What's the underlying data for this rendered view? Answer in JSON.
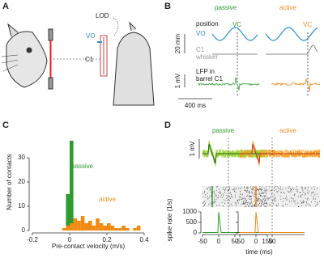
{
  "panel_a": {
    "label": "A",
    "LOD": "LOD",
    "VO": "VO",
    "C1": "C1"
  },
  "panel_b": {
    "label": "B",
    "passive": "passive",
    "active": "active",
    "position": "position",
    "VO": "VO",
    "VC": "VC",
    "C1": "C1",
    "whisker": "whisker",
    "scale_pos": "20 mm",
    "scale_lfp": "1 mV",
    "lfp1": "LFP in",
    "lfp2": "barrel C1",
    "scale_time": "400 ms"
  },
  "chart_data": {
    "type": "histogram",
    "panel_label": "C",
    "xlabel": "Pre-contact velocity (m/s)",
    "ylabel": "Number of contacts",
    "bins": [
      -0.04,
      -0.02,
      0,
      0.02,
      0.04,
      0.06,
      0.08,
      0.1,
      0.12,
      0.14,
      0.16,
      0.18,
      0.2,
      0.22,
      0.24,
      0.26,
      0.28,
      0.3,
      0.32,
      0.34,
      0.36,
      0.38,
      0.4
    ],
    "series": [
      {
        "name": "passive",
        "color": "#2e9c2e",
        "values": [
          0,
          15,
          37,
          0,
          0,
          0,
          0,
          0,
          0,
          0,
          0,
          0,
          0,
          0,
          0,
          0,
          0,
          0,
          0,
          0,
          0,
          0
        ]
      },
      {
        "name": "active",
        "color": "#f08a12",
        "values": [
          1,
          2,
          3,
          5,
          4,
          6,
          3,
          4,
          2,
          5,
          3,
          2,
          3,
          2,
          1,
          1,
          2,
          1,
          0,
          1,
          2,
          0
        ]
      }
    ],
    "xlim": [
      -0.2,
      0.4
    ],
    "ylim": [
      0,
      40
    ],
    "xticks": [
      -0.2,
      0,
      0.2,
      0.4
    ],
    "yticks": [
      0,
      10,
      20,
      30
    ]
  },
  "panel_d": {
    "label": "D",
    "passive": "passive",
    "active": "active",
    "scale_lfp": "1 mV",
    "ylabel": "spike rate (1/s)",
    "xlabel": "time (ms)",
    "rate_ylim": [
      0,
      1000
    ],
    "rate_yticks": [
      0,
      500,
      1000
    ],
    "xlim": [
      -50,
      150
    ],
    "xticks_left": [
      -50,
      0,
      50,
      150
    ],
    "xticks_right": [
      -50,
      0,
      50
    ]
  }
}
